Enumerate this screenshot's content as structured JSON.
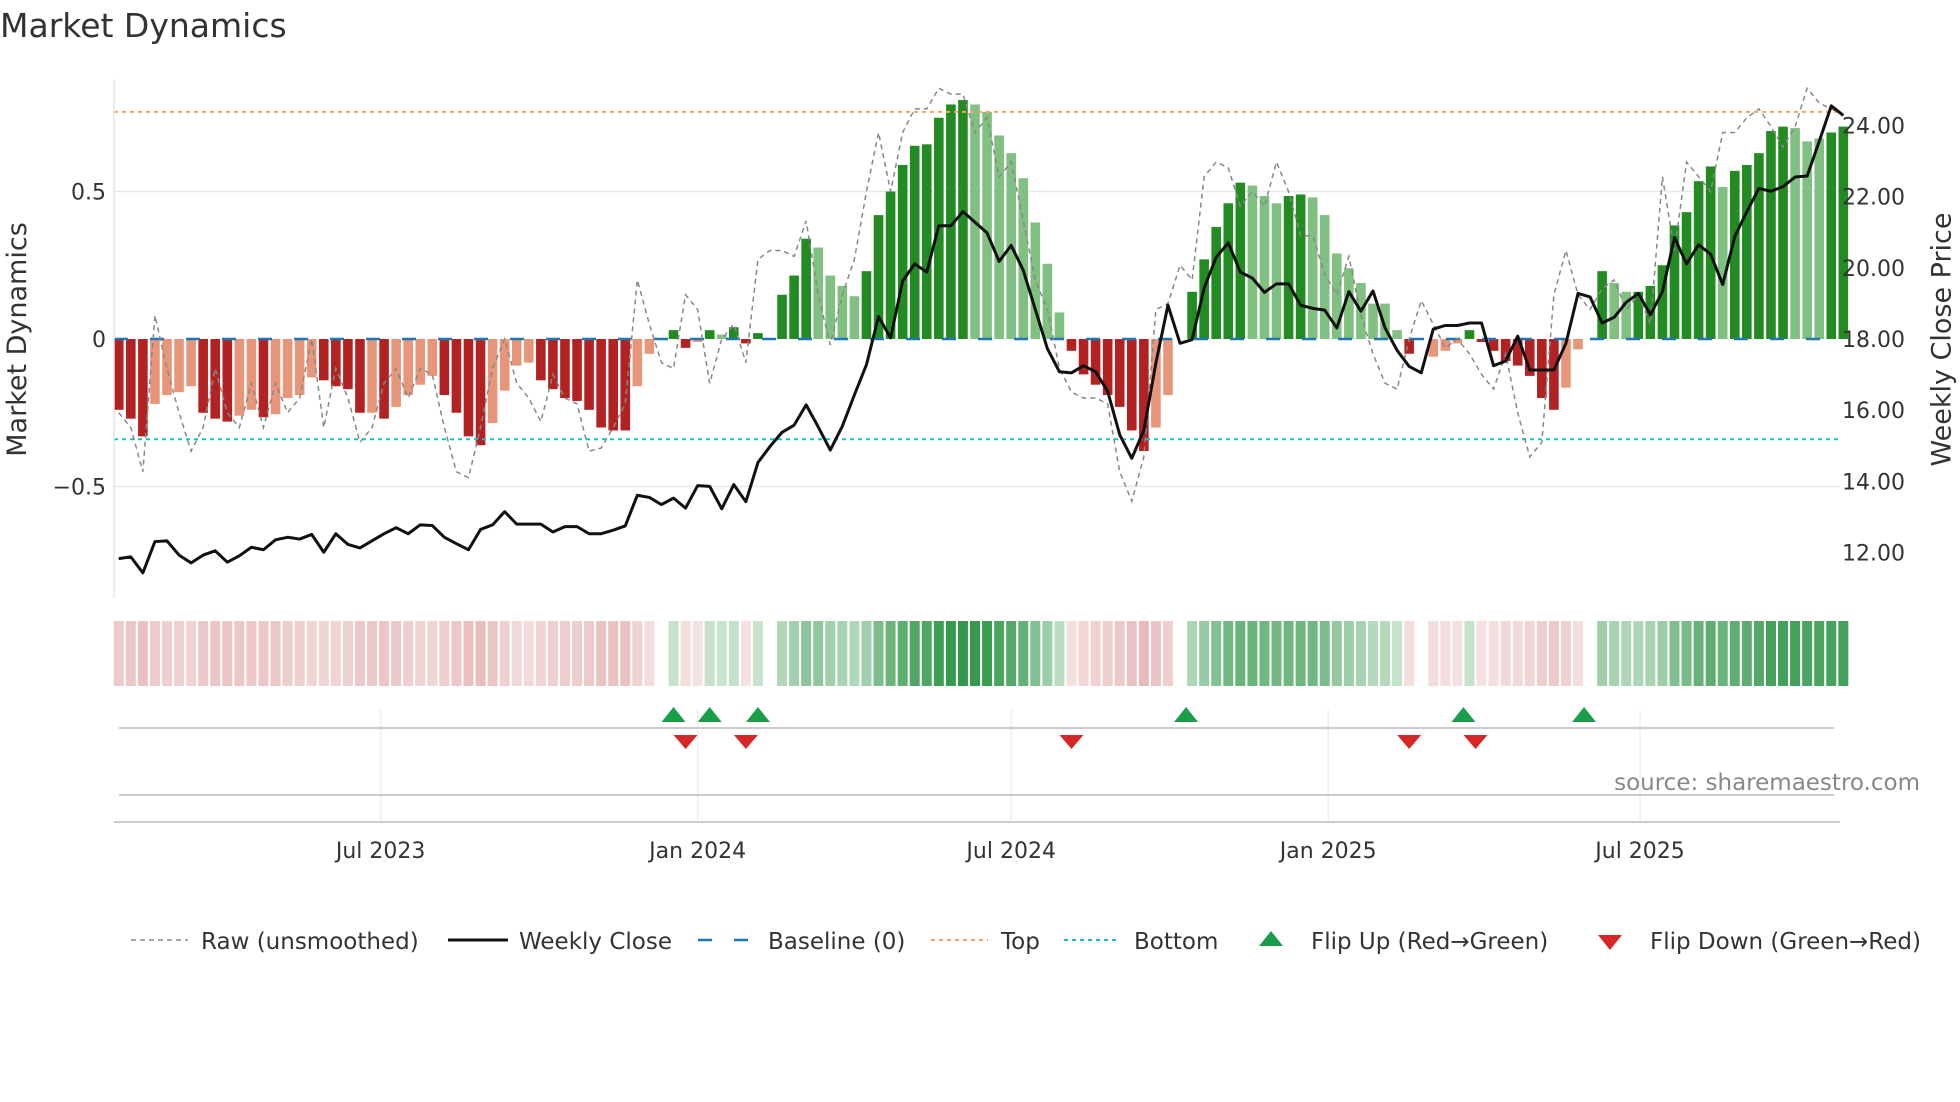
{
  "title": "Market Dynamics",
  "source": "source: sharemaestro.com",
  "chart_data": {
    "type": "bar",
    "title": "Market Dynamics",
    "ylabel": "Market Dynamics",
    "y2label": "Weekly Close Price",
    "ylim": [
      -0.88,
      0.88
    ],
    "y2lim": [
      11.0,
      25.0
    ],
    "yticks": [
      {
        "v": 0.5,
        "label": "0.5"
      },
      {
        "v": 0,
        "label": "0"
      },
      {
        "v": -0.5,
        "label": "−0.5"
      }
    ],
    "y2ticks": [
      {
        "v": 24,
        "label": "24.00"
      },
      {
        "v": 22,
        "label": "22.00"
      },
      {
        "v": 20,
        "label": "20.00"
      },
      {
        "v": 18,
        "label": "18.00"
      },
      {
        "v": 16,
        "label": "16.00"
      },
      {
        "v": 14,
        "label": "14.00"
      },
      {
        "v": 12,
        "label": "12.00"
      }
    ],
    "xticks": [
      {
        "date": "2023-07-01",
        "label": "Jul 2023"
      },
      {
        "date": "2024-01-01",
        "label": "Jan 2024"
      },
      {
        "date": "2024-07-01",
        "label": "Jul 2024"
      },
      {
        "date": "2025-01-01",
        "label": "Jan 2025"
      },
      {
        "date": "2025-07-01",
        "label": "Jul 2025"
      }
    ],
    "first_week": "2023-01-30",
    "frequency": "weekly",
    "top_level": 0.77,
    "bottom_level": -0.34,
    "baseline": 0,
    "dynamics": [
      -0.24,
      -0.27,
      -0.33,
      -0.22,
      -0.19,
      -0.18,
      -0.16,
      -0.25,
      -0.27,
      -0.28,
      -0.26,
      -0.24,
      -0.265,
      -0.255,
      -0.2,
      -0.19,
      -0.13,
      -0.14,
      -0.16,
      -0.17,
      -0.25,
      -0.25,
      -0.27,
      -0.23,
      -0.19,
      -0.155,
      -0.125,
      -0.19,
      -0.25,
      -0.33,
      -0.36,
      -0.285,
      -0.175,
      -0.09,
      -0.08,
      -0.14,
      -0.17,
      -0.2,
      -0.21,
      -0.24,
      -0.3,
      -0.31,
      -0.31,
      -0.16,
      -0.05,
      0,
      0.03,
      -0.03,
      -0.01,
      0.03,
      0.015,
      0.04,
      -0.015,
      0.02,
      0,
      0.15,
      0.215,
      0.34,
      0.31,
      0.215,
      0.18,
      0.145,
      0.23,
      0.42,
      0.5,
      0.59,
      0.655,
      0.66,
      0.75,
      0.795,
      0.81,
      0.795,
      0.77,
      0.69,
      0.63,
      0.545,
      0.395,
      0.255,
      0.09,
      -0.04,
      -0.12,
      -0.155,
      -0.19,
      -0.23,
      -0.31,
      -0.38,
      -0.3,
      -0.19,
      0,
      0.16,
      0.27,
      0.38,
      0.46,
      0.53,
      0.52,
      0.485,
      0.46,
      0.485,
      0.49,
      0.48,
      0.42,
      0.29,
      0.24,
      0.19,
      0.12,
      0.12,
      0.03,
      -0.05,
      0,
      -0.06,
      -0.04,
      -0.015,
      0.03,
      -0.01,
      -0.04,
      -0.075,
      -0.09,
      -0.125,
      -0.2,
      -0.24,
      -0.165,
      -0.035,
      0,
      0.23,
      0.19,
      0.16,
      0.16,
      0.18,
      0.25,
      0.385,
      0.43,
      0.535,
      0.585,
      0.515,
      0.57,
      0.59,
      0.63,
      0.705,
      0.72,
      0.715,
      0.67,
      0.68,
      0.7,
      0.72
    ],
    "shade_code": "DDDLLLLDDDLLDLLLLDDDDLDLLLLDDDDLLLLDDDDDDDDLLLDDLDLDDDLDDDLLLLDDDDDDDDDLLLLLLLLDDDDDDDLLLDDDDDLLLDDLLLLLLLLDLLLLDDDDDDDDLLLDLLDDDDDDDLDDDDDLLLDD",
    "raw": [
      -0.25,
      -0.3,
      -0.45,
      0.08,
      -0.1,
      -0.25,
      -0.38,
      -0.3,
      -0.1,
      -0.25,
      -0.3,
      -0.15,
      -0.3,
      -0.15,
      -0.25,
      -0.2,
      0,
      -0.3,
      -0.1,
      -0.2,
      -0.35,
      -0.3,
      -0.15,
      -0.1,
      -0.2,
      -0.1,
      -0.12,
      -0.3,
      -0.45,
      -0.47,
      -0.3,
      -0.1,
      0,
      -0.15,
      -0.2,
      -0.28,
      -0.12,
      -0.2,
      -0.22,
      -0.38,
      -0.37,
      -0.3,
      -0.22,
      0.2,
      0.05,
      -0.08,
      -0.1,
      0.15,
      0.1,
      -0.15,
      0,
      0.05,
      -0.08,
      0.27,
      0.3,
      0.3,
      0.28,
      0.4,
      0.15,
      -0.02,
      0.15,
      0.27,
      0.5,
      0.7,
      0.5,
      0.7,
      0.78,
      0.78,
      0.85,
      0.83,
      0.83,
      0.7,
      0.75,
      0.55,
      0.6,
      0.4,
      0.2,
      0.1,
      -0.1,
      -0.18,
      -0.2,
      -0.2,
      -0.22,
      -0.45,
      -0.55,
      -0.4,
      0.1,
      0.12,
      0.25,
      0.2,
      0.55,
      0.6,
      0.58,
      0.45,
      0.5,
      0.45,
      0.6,
      0.5,
      0.35,
      0.35,
      0.22,
      0.15,
      0.28,
      0.08,
      -0.05,
      -0.15,
      -0.17,
      0,
      0.13,
      0.05,
      -0.03,
      0,
      -0.05,
      -0.12,
      -0.17,
      -0.05,
      -0.25,
      -0.4,
      -0.35,
      0.15,
      0.3,
      0.15,
      0.1,
      0.17,
      0.2,
      0.1,
      0.15,
      0.05,
      0.55,
      0.3,
      0.6,
      0.55,
      0.5,
      0.7,
      0.7,
      0.75,
      0.78,
      0.72,
      0.65,
      0.72,
      0.85,
      0.8,
      0.78,
      0.76
    ],
    "weekly_close": [
      11.83,
      11.88,
      11.43,
      12.31,
      12.33,
      11.93,
      11.71,
      11.93,
      12.05,
      11.73,
      11.91,
      12.15,
      12.08,
      12.36,
      12.43,
      12.38,
      12.51,
      12.01,
      12.53,
      12.23,
      12.13,
      12.33,
      12.53,
      12.7,
      12.53,
      12.78,
      12.76,
      12.43,
      12.25,
      12.08,
      12.65,
      12.78,
      13.15,
      12.8,
      12.8,
      12.8,
      12.58,
      12.73,
      12.73,
      12.53,
      12.53,
      12.63,
      12.75,
      13.61,
      13.55,
      13.35,
      13.53,
      13.25,
      13.88,
      13.86,
      13.23,
      13.91,
      13.43,
      14.53,
      14.98,
      15.38,
      15.58,
      16.15,
      15.53,
      14.88,
      15.55,
      16.43,
      17.28,
      18.63,
      18.03,
      19.63,
      20.11,
      19.88,
      21.18,
      21.18,
      21.58,
      21.28,
      20.98,
      20.18,
      20.63,
      19.93,
      18.83,
      17.73,
      17.08,
      17.05,
      17.25,
      17.08,
      16.53,
      15.31,
      14.65,
      15.43,
      17.33,
      18.95,
      17.88,
      17.98,
      19.43,
      20.3,
      20.7,
      19.88,
      19.71,
      19.31,
      19.55,
      19.55,
      18.95,
      18.86,
      18.81,
      18.31,
      19.33,
      18.78,
      19.35,
      18.31,
      17.68,
      17.23,
      17.05,
      18.28,
      18.38,
      18.38,
      18.45,
      18.45,
      17.25,
      17.38,
      18.08,
      17.13,
      17.13,
      17.13,
      17.88,
      19.28,
      19.18,
      18.45,
      18.61,
      19.03,
      19.28,
      18.68,
      19.33,
      20.85,
      20.11,
      20.65,
      20.38,
      19.53,
      20.88,
      21.58,
      22.23,
      22.15,
      22.28,
      22.55,
      22.58,
      23.55,
      24.55,
      24.28
    ],
    "flips": [
      {
        "dir": "up",
        "week_index": 46
      },
      {
        "dir": "down",
        "week_index": 47
      },
      {
        "dir": "up",
        "week_index": 49
      },
      {
        "dir": "down",
        "week_index": 52
      },
      {
        "dir": "up",
        "week_index": 53
      },
      {
        "dir": "down",
        "week_index": 79
      },
      {
        "dir": "up",
        "week_index": 88.5
      },
      {
        "dir": "down",
        "week_index": 107
      },
      {
        "dir": "up",
        "week_index": 111.5
      },
      {
        "dir": "down",
        "week_index": 112.5
      },
      {
        "dir": "up",
        "week_index": 121.5
      }
    ],
    "legend": [
      {
        "key": "raw",
        "label": "Raw (unsmoothed)"
      },
      {
        "key": "close",
        "label": "Weekly Close"
      },
      {
        "key": "baseline",
        "label": "Baseline (0)"
      },
      {
        "key": "top",
        "label": "Top"
      },
      {
        "key": "bottom",
        "label": "Bottom"
      },
      {
        "key": "flip_up",
        "label": "Flip Up (Red→Green)"
      },
      {
        "key": "flip_down",
        "label": "Flip Down (Green→Red)"
      }
    ],
    "legend_position": "bottom",
    "colors": {
      "dark_green": "#228b22",
      "light_green": "#80c080",
      "dark_red": "#b22222",
      "light_red": "#e8967a",
      "baseline": "#1f77b4",
      "top": "#f4a460",
      "bottom": "#17becf",
      "close": "#111111",
      "raw": "#888888",
      "flip_up": "#1a9e4a",
      "flip_down": "#d62728"
    }
  }
}
